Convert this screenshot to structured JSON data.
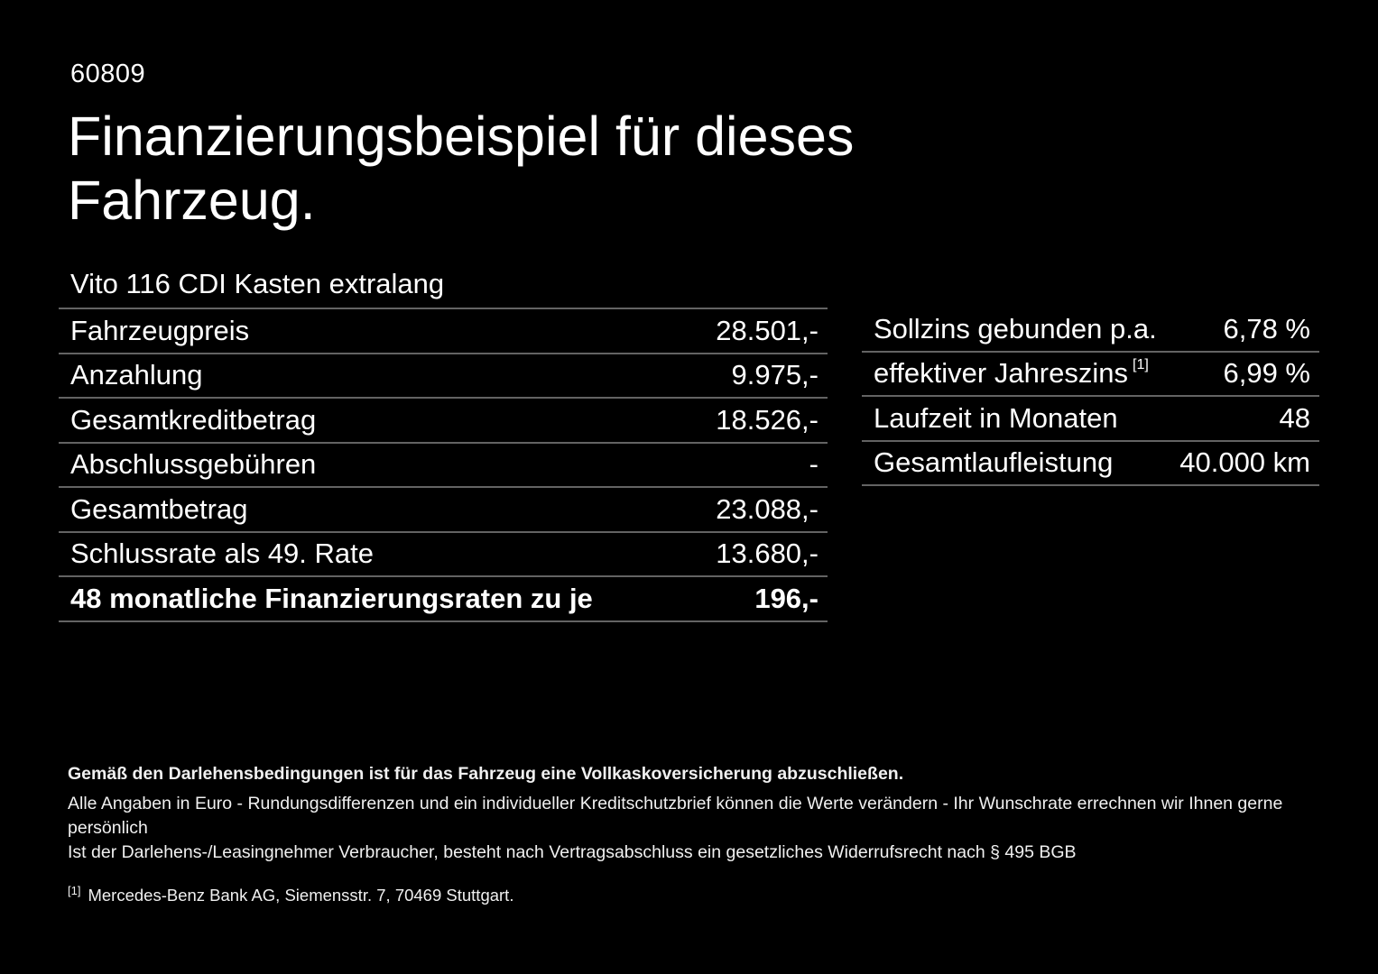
{
  "page": {
    "doc_number": "60809",
    "title": "Finanzierungsbeispiel für dieses Fahrzeug.",
    "vehicle": "Vito 116 CDI Kasten extralang"
  },
  "left_table": {
    "rows": [
      {
        "label": "Fahrzeugpreis",
        "value": "28.501,-"
      },
      {
        "label": "Anzahlung",
        "value": "9.975,-"
      },
      {
        "label": "Gesamtkreditbetrag",
        "value": "18.526,-"
      },
      {
        "label": "Abschlussgebühren",
        "value": "-"
      },
      {
        "label": "Gesamtbetrag",
        "value": "23.088,-"
      },
      {
        "label": "Schlussrate als 49. Rate",
        "value": "13.680,-"
      },
      {
        "label": "48 monatliche Finanzierungsraten zu je",
        "value": "196,-"
      }
    ]
  },
  "right_table": {
    "rows": [
      {
        "label": "Sollzins gebunden p.a.",
        "sup": "",
        "value": "6,78 %"
      },
      {
        "label": "effektiver Jahreszins",
        "sup": "[1]",
        "value": "6,99 %"
      },
      {
        "label": "Laufzeit in Monaten",
        "sup": "",
        "value": "48"
      },
      {
        "label": "Gesamtlaufleistung",
        "sup": "",
        "value": "40.000 km"
      }
    ]
  },
  "footer": {
    "bold_note": "Gemäß den Darlehensbedingungen ist für das Fahrzeug eine Vollkaskoversicherung abzuschließen.",
    "note_line1": "Alle Angaben in Euro - Rundungsdifferenzen und ein individueller Kreditschutzbrief können die Werte verändern - Ihr Wunschrate errechnen wir Ihnen gerne persönlich",
    "note_line2": "Ist der Darlehens-/Leasingnehmer Verbraucher, besteht nach Vertragsabschluss ein gesetzliches Widerrufsrecht nach § 495 BGB",
    "footnote_marker": "[1]",
    "footnote_text": "Mercedes-Benz Bank AG, Siemensstr. 7, 70469 Stuttgart."
  },
  "colors": {
    "background": "#000000",
    "text": "#ffffff",
    "divider": "#636363"
  }
}
